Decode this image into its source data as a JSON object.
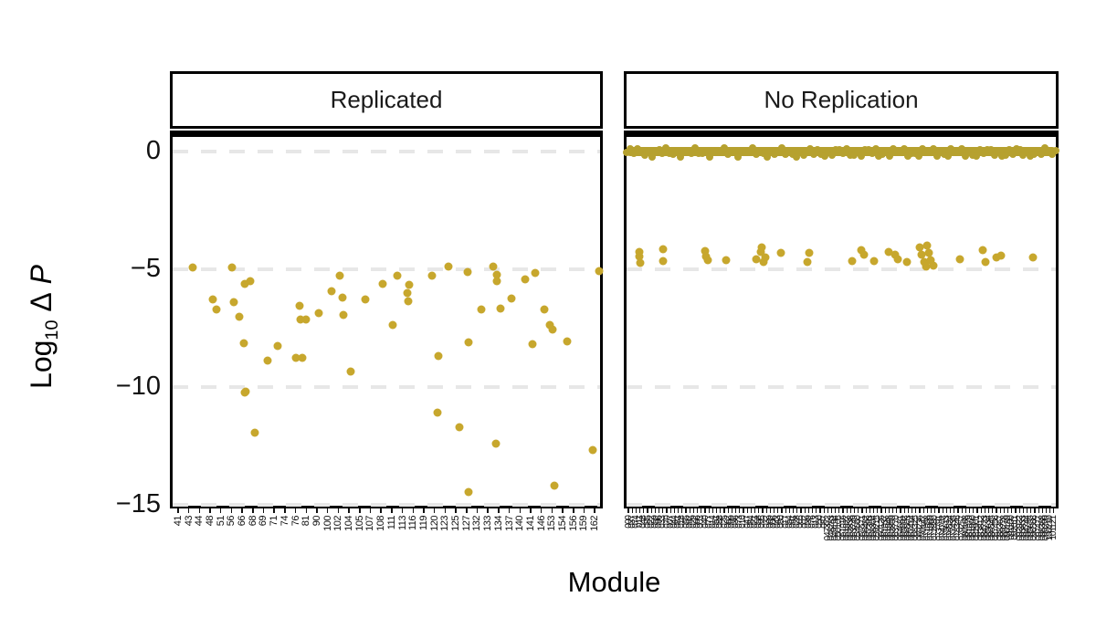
{
  "labels": {
    "x_axis_title": "Module",
    "y_axis_title": {
      "log": "Log",
      "sub": "10",
      "delta": "Δ",
      "p": "P"
    },
    "panel1_header": "Replicated",
    "panel2_header": "No Replication"
  },
  "colors": {
    "point": "#c7a72d",
    "band": "#b6a12f",
    "grid": "#e7e7e7",
    "border": "#000000",
    "text": "#111111"
  },
  "chart_data": {
    "type": "scatter",
    "title": "",
    "xlabel": "Module",
    "ylabel": "Log10 Δ P",
    "ylim": [
      -15.5,
      0.6
    ],
    "y_ticks": [
      0,
      -5,
      -10,
      -15
    ],
    "y_tick_labels": [
      "0",
      "−5",
      "−10",
      "−15"
    ],
    "grid": "horizontal-dashed",
    "legend": "none",
    "facets": [
      {
        "label": "Replicated",
        "modules": [
          "41",
          "43",
          "44",
          "48",
          "51",
          "56",
          "66",
          "68",
          "69",
          "71",
          "74",
          "76",
          "81",
          "90",
          "100",
          "102",
          "104",
          "105",
          "107",
          "108",
          "111",
          "113",
          "116",
          "119",
          "120",
          "123",
          "125",
          "127",
          "132",
          "133",
          "134",
          "137",
          "140",
          "141",
          "146",
          "153",
          "154",
          "156",
          "159",
          "162"
        ],
        "points": [
          {
            "mx": 1.35,
            "v": -4.92
          },
          {
            "mx": 5.07,
            "v": -4.92
          },
          {
            "mx": 6.25,
            "v": -5.62
          },
          {
            "mx": 6.76,
            "v": -5.5
          },
          {
            "mx": 3.3,
            "v": -6.27
          },
          {
            "mx": 5.24,
            "v": -6.38
          },
          {
            "mx": 3.63,
            "v": -6.69
          },
          {
            "mx": 5.75,
            "v": -7.0
          },
          {
            "mx": 11.41,
            "v": -6.54
          },
          {
            "mx": 11.5,
            "v": -7.12
          },
          {
            "mx": 12.0,
            "v": -7.15
          },
          {
            "mx": 13.19,
            "v": -6.85
          },
          {
            "mx": 14.37,
            "v": -5.92
          },
          {
            "mx": 15.13,
            "v": -5.27
          },
          {
            "mx": 15.38,
            "v": -6.19
          },
          {
            "mx": 15.47,
            "v": -6.92
          },
          {
            "mx": 17.5,
            "v": -6.27
          },
          {
            "mx": 19.19,
            "v": -5.62
          },
          {
            "mx": 16.14,
            "v": -9.35
          },
          {
            "mx": 6.17,
            "v": -8.15
          },
          {
            "mx": 9.3,
            "v": -8.27
          },
          {
            "mx": 8.37,
            "v": -8.88
          },
          {
            "mx": 11.07,
            "v": -8.77
          },
          {
            "mx": 11.66,
            "v": -8.77
          },
          {
            "mx": 6.25,
            "v": -10.23
          },
          {
            "mx": 7.18,
            "v": -11.92
          },
          {
            "mx": 20.54,
            "v": -5.27
          },
          {
            "mx": 21.64,
            "v": -5.65
          },
          {
            "mx": 21.47,
            "v": -6.0
          },
          {
            "mx": 21.56,
            "v": -6.35
          },
          {
            "mx": 23.75,
            "v": -5.27
          },
          {
            "mx": 25.27,
            "v": -4.88
          },
          {
            "mx": 27.13,
            "v": -5.12
          },
          {
            "mx": 29.5,
            "v": -4.88
          },
          {
            "mx": 29.84,
            "v": -5.23
          },
          {
            "mx": 29.84,
            "v": -5.5
          },
          {
            "mx": 28.4,
            "v": -6.69
          },
          {
            "mx": 30.18,
            "v": -6.65
          },
          {
            "mx": 31.19,
            "v": -6.23
          },
          {
            "mx": 32.46,
            "v": -5.42
          },
          {
            "mx": 33.39,
            "v": -5.15
          },
          {
            "mx": 34.32,
            "v": -6.69
          },
          {
            "mx": 34.83,
            "v": -7.35
          },
          {
            "mx": 35.08,
            "v": -7.54
          },
          {
            "mx": 36.43,
            "v": -8.08
          },
          {
            "mx": 20.12,
            "v": -7.35
          },
          {
            "mx": 27.22,
            "v": -8.12
          },
          {
            "mx": 24.34,
            "v": -8.69
          },
          {
            "mx": 33.14,
            "v": -8.19
          },
          {
            "mx": 39.39,
            "v": -5.08
          },
          {
            "mx": 6.34,
            "v": -10.19
          },
          {
            "mx": 24.26,
            "v": -11.08
          },
          {
            "mx": 26.37,
            "v": -11.69
          },
          {
            "mx": 29.76,
            "v": -12.42
          },
          {
            "mx": 38.8,
            "v": -12.69
          },
          {
            "mx": 27.22,
            "v": -14.46
          },
          {
            "mx": 35.25,
            "v": -14.19
          }
        ]
      },
      {
        "label": "No Replication",
        "x_ticks": {
          "count": 112,
          "legible": false,
          "note": "dense overlapping rotated numeric labels, illegible"
        },
        "zero_band": {
          "value": 0,
          "half_thickness": 0.2,
          "x_span": [
            0,
            1
          ],
          "note": "dense overlapping points at ~0 across all modules"
        },
        "points": [
          {
            "fx": 0.029,
            "v": -4.27
          },
          {
            "fx": 0.029,
            "v": -4.46
          },
          {
            "fx": 0.032,
            "v": -4.73
          },
          {
            "fx": 0.086,
            "v": -4.15
          },
          {
            "fx": 0.086,
            "v": -4.65
          },
          {
            "fx": 0.183,
            "v": -4.23
          },
          {
            "fx": 0.185,
            "v": -4.46
          },
          {
            "fx": 0.189,
            "v": -4.62
          },
          {
            "fx": 0.232,
            "v": -4.62
          },
          {
            "fx": 0.303,
            "v": -4.58
          },
          {
            "fx": 0.312,
            "v": -4.27
          },
          {
            "fx": 0.314,
            "v": -4.08
          },
          {
            "fx": 0.324,
            "v": -4.5
          },
          {
            "fx": 0.32,
            "v": -4.69
          },
          {
            "fx": 0.36,
            "v": -4.31
          },
          {
            "fx": 0.425,
            "v": -4.31
          },
          {
            "fx": 0.421,
            "v": -4.69
          },
          {
            "fx": 0.526,
            "v": -4.65
          },
          {
            "fx": 0.547,
            "v": -4.19
          },
          {
            "fx": 0.554,
            "v": -4.38
          },
          {
            "fx": 0.577,
            "v": -4.65
          },
          {
            "fx": 0.611,
            "v": -4.27
          },
          {
            "fx": 0.625,
            "v": -4.38
          },
          {
            "fx": 0.632,
            "v": -4.58
          },
          {
            "fx": 0.653,
            "v": -4.69
          },
          {
            "fx": 0.684,
            "v": -4.08
          },
          {
            "fx": 0.688,
            "v": -4.38
          },
          {
            "fx": 0.693,
            "v": -4.69
          },
          {
            "fx": 0.701,
            "v": -4.0
          },
          {
            "fx": 0.705,
            "v": -4.31
          },
          {
            "fx": 0.709,
            "v": -4.62
          },
          {
            "fx": 0.714,
            "v": -4.85
          },
          {
            "fx": 0.697,
            "v": -4.88
          },
          {
            "fx": 0.777,
            "v": -4.58
          },
          {
            "fx": 0.829,
            "v": -4.19
          },
          {
            "fx": 0.836,
            "v": -4.69
          },
          {
            "fx": 0.861,
            "v": -4.5
          },
          {
            "fx": 0.872,
            "v": -4.42
          },
          {
            "fx": 0.947,
            "v": -4.5
          }
        ]
      }
    ]
  }
}
